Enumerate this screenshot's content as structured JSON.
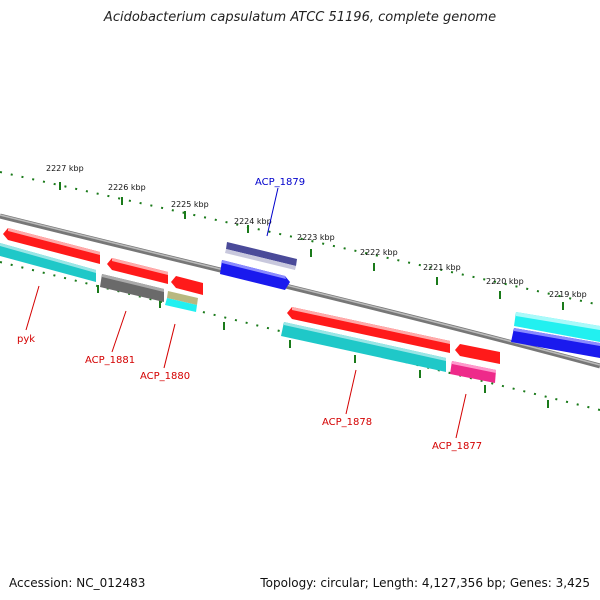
{
  "title": "Acidobacterium capsulatum ATCC 51196, complete genome",
  "footer": {
    "accession": "Accession: NC_012483",
    "stats": "Topology: circular; Length: 4,127,356 bp; Genes: 3,425"
  },
  "ruler_labels": [
    "2227 kbp",
    "2226 kbp",
    "2225 kbp",
    "2224 kbp",
    "2223 kbp",
    "2222 kbp",
    "2221 kbp",
    "2220 kbp",
    "2219 kbp"
  ],
  "gene_labels": [
    "ACP_1879",
    "pyk",
    "ACP_1881",
    "ACP_1880",
    "ACP_1878",
    "ACP_1877"
  ],
  "colors": {
    "tick": "#1a7a1a",
    "backbone": "#8a8a8a",
    "red": "#ff1a1a",
    "cyan": "#1fc8c8",
    "gray": "#6a6a6a",
    "blue": "#1a1aee",
    "navy": "#4a4a99",
    "pink": "#ee2a8a",
    "olive": "#b8b880",
    "bright_cyan": "#22f0f0",
    "label_red": "#d40000",
    "label_blue": "#0000cc"
  }
}
